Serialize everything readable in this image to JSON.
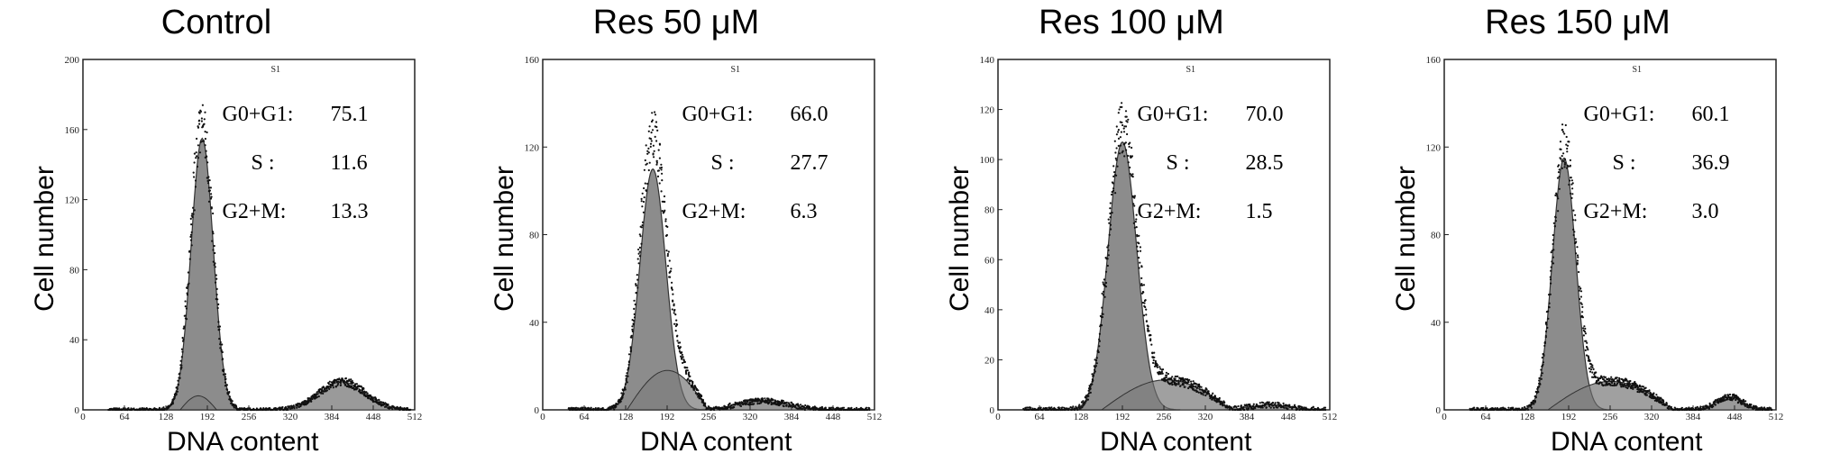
{
  "chart_data": [
    {
      "type": "area",
      "title": "Control",
      "xlabel": "DNA content",
      "ylabel": "Cell number",
      "xlim": [
        0,
        512
      ],
      "ylim": [
        0,
        200
      ],
      "x_ticks": [
        "0",
        "64",
        "128",
        "192",
        "256",
        "320",
        "384",
        "448",
        "512"
      ],
      "y_ticks": [
        "0",
        "40",
        "80",
        "120",
        "160",
        "200"
      ],
      "marker_label": "S1",
      "series": [
        {
          "name": "G0+G1",
          "peak_x": 184,
          "peak_y": 155,
          "sigma": 17
        },
        {
          "name": "S",
          "start": 150,
          "end": 240,
          "level": 8
        },
        {
          "name": "G2+M",
          "peak_x": 400,
          "peak_y": 16,
          "sigma": 35
        }
      ],
      "annotations": [
        {
          "label": "G0+G1",
          "sep": ":",
          "value": "75.1"
        },
        {
          "label": "S",
          "sep": ":",
          "value": "11.6"
        },
        {
          "label": "G2+M",
          "sep": ":",
          "value": "13.3"
        }
      ]
    },
    {
      "type": "area",
      "title": "Res 50 μM",
      "xlabel": "DNA content",
      "ylabel": "Cell number",
      "xlim": [
        0,
        512
      ],
      "ylim": [
        0,
        160
      ],
      "x_ticks": [
        "0",
        "64",
        "128",
        "192",
        "256",
        "320",
        "384",
        "448",
        "512"
      ],
      "y_ticks": [
        "0",
        "40",
        "80",
        "120",
        "160"
      ],
      "marker_label": "S1",
      "series": [
        {
          "name": "G0+G1",
          "peak_x": 170,
          "peak_y": 110,
          "sigma": 20
        },
        {
          "name": "S",
          "start": 130,
          "end": 330,
          "level": 18
        },
        {
          "name": "G2+M",
          "peak_x": 340,
          "peak_y": 4,
          "sigma": 40
        }
      ],
      "annotations": [
        {
          "label": "G0+G1",
          "sep": ":",
          "value": "66.0"
        },
        {
          "label": "S",
          "sep": ":",
          "value": "27.7"
        },
        {
          "label": "G2+M",
          "sep": ":",
          "value": "6.3"
        }
      ]
    },
    {
      "type": "area",
      "title": "Res 100 μM",
      "xlabel": "DNA content",
      "ylabel": "Cell number",
      "xlim": [
        0,
        512
      ],
      "ylim": [
        0,
        140
      ],
      "x_ticks": [
        "0",
        "64",
        "128",
        "192",
        "256",
        "320",
        "384",
        "448",
        "512"
      ],
      "y_ticks": [
        "0",
        "20",
        "40",
        "60",
        "80",
        "100",
        "120",
        "140"
      ],
      "marker_label": "S1",
      "series": [
        {
          "name": "G0+G1",
          "peak_x": 192,
          "peak_y": 107,
          "sigma": 22
        },
        {
          "name": "S",
          "start": 160,
          "end": 480,
          "level": 12
        },
        {
          "name": "G2+M",
          "peak_x": 420,
          "peak_y": 2,
          "sigma": 30
        }
      ],
      "annotations": [
        {
          "label": "G0+G1",
          "sep": ":",
          "value": "70.0"
        },
        {
          "label": "S",
          "sep": ":",
          "value": "28.5"
        },
        {
          "label": "G2+M",
          "sep": ":",
          "value": "1.5"
        }
      ]
    },
    {
      "type": "area",
      "title": "Res 150 μM",
      "xlabel": "DNA content",
      "ylabel": "Cell number",
      "xlim": [
        0,
        512
      ],
      "ylim": [
        0,
        160
      ],
      "x_ticks": [
        "0",
        "64",
        "128",
        "192",
        "256",
        "320",
        "384",
        "448",
        "512"
      ],
      "y_ticks": [
        "0",
        "40",
        "80",
        "120",
        "160"
      ],
      "marker_label": "S1",
      "series": [
        {
          "name": "G0+G1",
          "peak_x": 185,
          "peak_y": 115,
          "sigma": 18
        },
        {
          "name": "S",
          "start": 160,
          "end": 470,
          "level": 13
        },
        {
          "name": "G2+M",
          "peak_x": 440,
          "peak_y": 6,
          "sigma": 20
        }
      ],
      "annotations": [
        {
          "label": "G0+G1",
          "sep": ":",
          "value": "60.1"
        },
        {
          "label": "S",
          "sep": ":",
          "value": "36.9"
        },
        {
          "label": "G2+M",
          "sep": ":",
          "value": "3.0"
        }
      ]
    }
  ]
}
